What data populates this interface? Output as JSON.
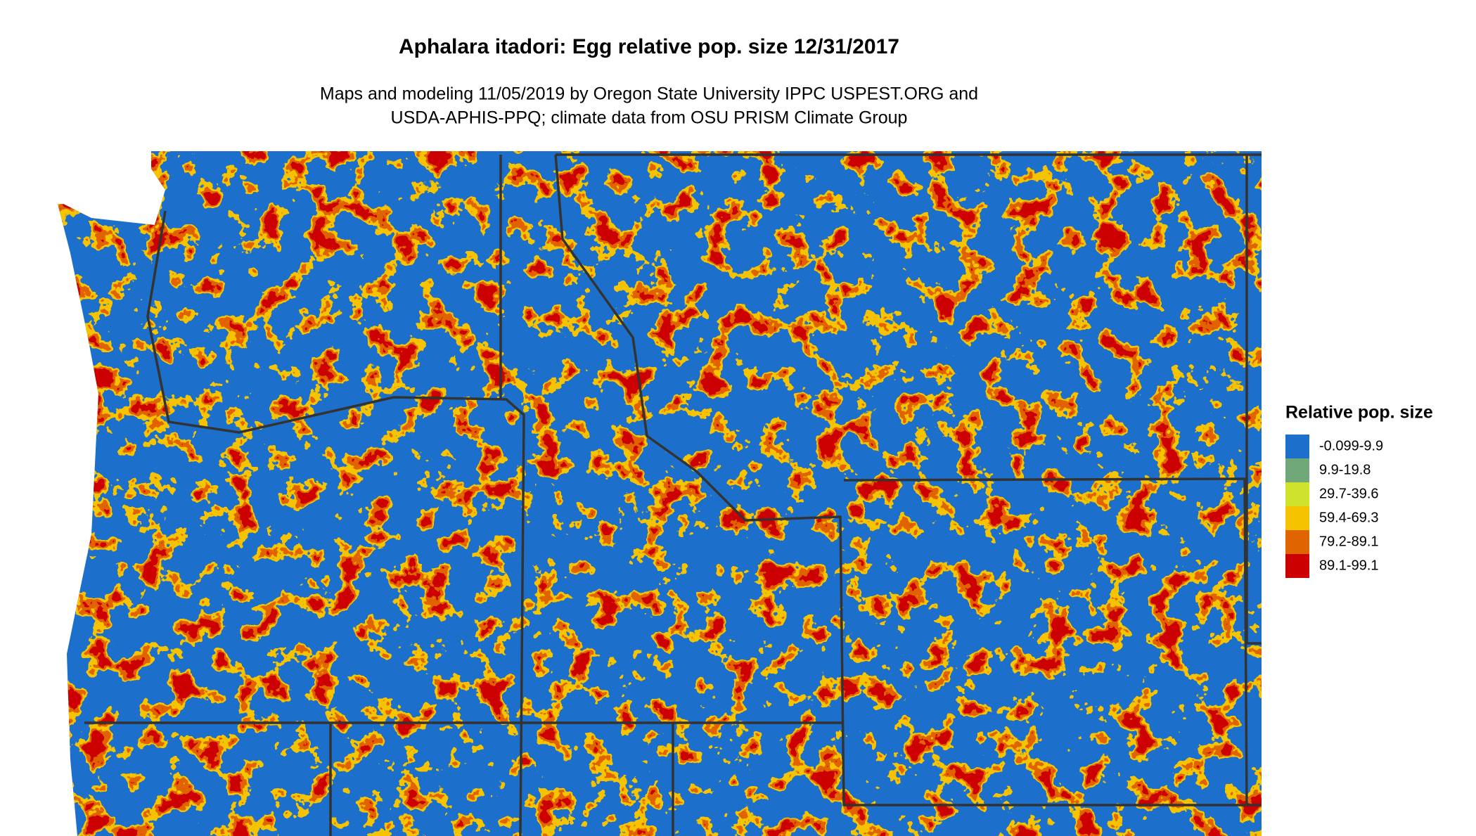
{
  "title": "Aphalara itadori: Egg relative pop. size 12/31/2017",
  "subtitle": [
    "Maps and modeling 11/05/2019 by Oregon State University IPPC USPEST.ORG and",
    "USDA-APHIS-PPQ; climate data from OSU PRISM Climate Group"
  ],
  "legend": {
    "title": "Relative pop. size",
    "items": [
      {
        "label": "-0.099-9.9",
        "color": "#1c70cc"
      },
      {
        "label": "9.9-19.8",
        "color": "#70a87a"
      },
      {
        "label": "29.7-39.6",
        "color": "#cfe22c"
      },
      {
        "label": "59.4-69.3",
        "color": "#f5c300"
      },
      {
        "label": "79.2-89.1",
        "color": "#e06400"
      },
      {
        "label": "89.1-99.1",
        "color": "#cc0000"
      }
    ]
  }
}
